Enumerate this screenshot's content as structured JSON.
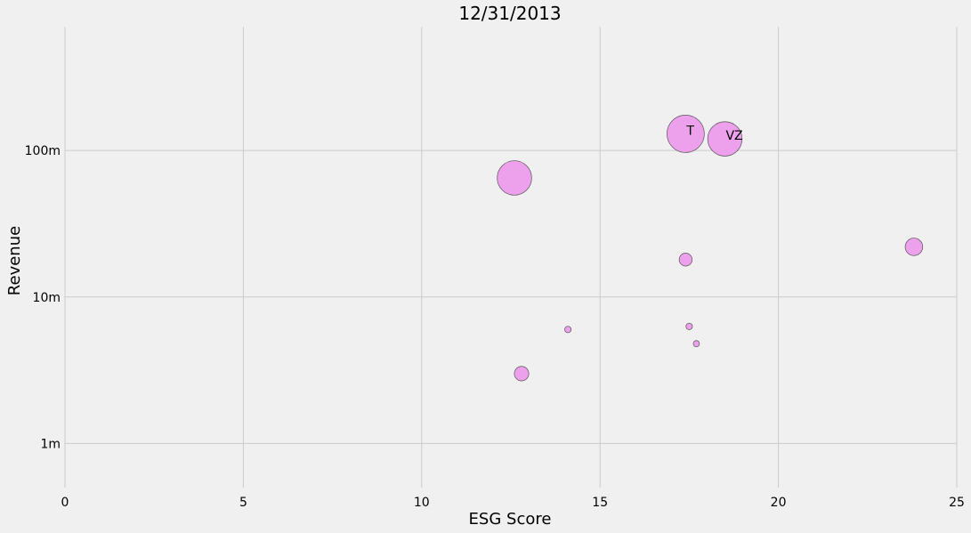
{
  "chart_data": {
    "type": "scatter",
    "title": "12/31/2013",
    "xlabel": "ESG Score",
    "ylabel": "Revenue",
    "xlim": [
      0,
      25
    ],
    "ylim": [
      500000,
      700000000
    ],
    "yscale": "log",
    "grid": true,
    "x_ticks": [
      0,
      5,
      10,
      15,
      20,
      25
    ],
    "y_ticks": [
      {
        "value": 1000000,
        "label": "1m"
      },
      {
        "value": 10000000,
        "label": "10m"
      },
      {
        "value": 100000000,
        "label": "100m"
      }
    ],
    "marker_color": "#eda0ec",
    "edge_color": "#555555",
    "points": [
      {
        "x": 17.4,
        "y": 130000000,
        "size": 1.0,
        "label": "T"
      },
      {
        "x": 18.5,
        "y": 120000000,
        "size": 0.85,
        "label": "VZ"
      },
      {
        "x": 12.6,
        "y": 65000000,
        "size": 0.85,
        "label": ""
      },
      {
        "x": 23.8,
        "y": 22000000,
        "size": 0.22,
        "label": ""
      },
      {
        "x": 17.4,
        "y": 18000000,
        "size": 0.12,
        "label": ""
      },
      {
        "x": 14.1,
        "y": 6000000,
        "size": 0.03,
        "label": ""
      },
      {
        "x": 17.5,
        "y": 6300000,
        "size": 0.03,
        "label": ""
      },
      {
        "x": 17.7,
        "y": 4800000,
        "size": 0.025,
        "label": ""
      },
      {
        "x": 12.8,
        "y": 3000000,
        "size": 0.15,
        "label": ""
      }
    ]
  }
}
